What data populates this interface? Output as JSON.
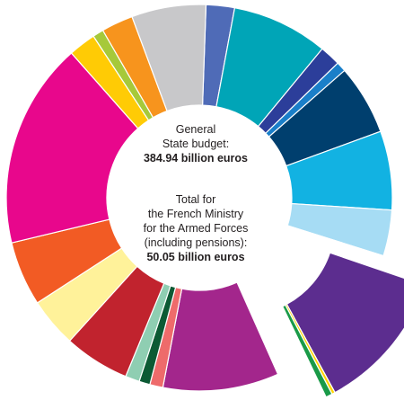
{
  "chart_data": {
    "type": "pie",
    "annotations": {
      "budget_label_line1": "General",
      "budget_label_line2": "State budget:",
      "budget_value": "384.94 billion euros",
      "ministry_label_line1": "Total for",
      "ministry_label_line2": "the French Ministry",
      "ministry_label_line3": "for the Armed Forces",
      "ministry_label_line4": "(including pensions):",
      "ministry_value": "50.05 billion euros"
    },
    "slices": [
      {
        "value": 2.6,
        "color": "#4f6bb7"
      },
      {
        "value": 8.8,
        "color": "#00a5b7"
      },
      {
        "value": 1.9,
        "color": "#2c3e9a"
      },
      {
        "value": 0.9,
        "color": "#1a7fc9"
      },
      {
        "value": 6.4,
        "color": "#003f6e"
      },
      {
        "value": 7.2,
        "color": "#12b2e2"
      },
      {
        "value": 4.2,
        "color": "#a6dcf4"
      },
      {
        "value": 0.4,
        "color": "#ffffff"
      },
      {
        "value": 12.9,
        "color": "#5c2d8f",
        "exploded": true
      },
      {
        "value": 0.3,
        "color": "#ffd400",
        "exploded": true
      },
      {
        "value": 0.6,
        "color": "#1a9a48",
        "exploded": true
      },
      {
        "value": 0.5,
        "color": "#ffffff"
      },
      {
        "value": 10.6,
        "color": "#a3268c"
      },
      {
        "value": 1.2,
        "color": "#ee6b6b"
      },
      {
        "value": 1.0,
        "color": "#0c5a34"
      },
      {
        "value": 1.3,
        "color": "#8fceb2"
      },
      {
        "value": 6.0,
        "color": "#c1232e"
      },
      {
        "value": 4.5,
        "color": "#fff29a"
      },
      {
        "value": 5.9,
        "color": "#f25b24"
      },
      {
        "value": 18.8,
        "color": "#e8078c"
      },
      {
        "value": 2.5,
        "color": "#ffcb05"
      },
      {
        "value": 1.0,
        "color": "#a6c93a"
      },
      {
        "value": 2.9,
        "color": "#f7941d"
      },
      {
        "value": 6.8,
        "color": "#c8c8ca"
      }
    ]
  }
}
